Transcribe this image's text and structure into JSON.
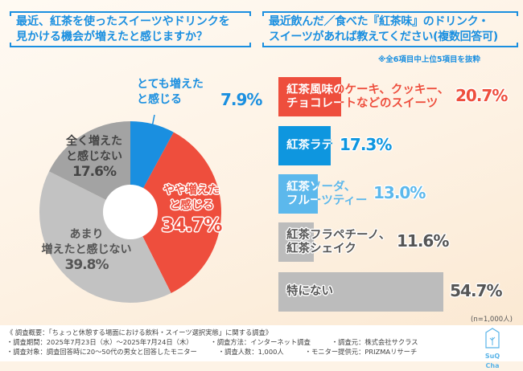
{
  "left": {
    "question": [
      "最近、紅茶を使ったスイーツやドリンクを",
      "見かける機会が増えたと感じますか？"
    ]
  },
  "right": {
    "question": [
      "最近飲んだ／食べた『紅茶味』のドリンク・",
      "スイーツがあれば教えてください(複数回答可)"
    ],
    "note": "※全6項目中上位5項目を抜粋",
    "sample": "(n=1,000人)"
  },
  "chart_data": [
    {
      "type": "pie",
      "style": "donut",
      "slices": [
        {
          "label": [
            "とても増えた",
            "と感じる"
          ],
          "value": 7.9,
          "display": "7.9%",
          "color": "#1a8fe0"
        },
        {
          "label": [
            "やや増えた",
            "と感じる"
          ],
          "value": 34.7,
          "display": "34.7%",
          "color": "#ee4e3d"
        },
        {
          "label": [
            "あまり",
            "増えたと感じない"
          ],
          "value": 39.8,
          "display": "39.8%",
          "color": "#c2c2c2"
        },
        {
          "label": [
            "全く増えた",
            "と感じない"
          ],
          "value": 17.6,
          "display": "17.6%",
          "color": "#a3a3a3"
        }
      ]
    },
    {
      "type": "bar",
      "orientation": "horizontal",
      "unit": "%",
      "bars": [
        {
          "label": [
            "紅茶風味のケーキ、クッキー、",
            "チョコレートなどのスイーツ"
          ],
          "value": 20.7,
          "display": "20.7%",
          "color": "#ee4e3d"
        },
        {
          "label": [
            "紅茶ラテ"
          ],
          "value": 17.3,
          "display": "17.3%",
          "color": "#0e96df"
        },
        {
          "label": [
            "紅茶ソーダ、",
            "フルーツティー"
          ],
          "value": 13.0,
          "display": "13.0%",
          "color": "#5cb8ec"
        },
        {
          "label": [
            "紅茶フラペチーノ、",
            "紅茶シェイク"
          ],
          "value": 11.6,
          "display": "11.6%",
          "color": "#bcbcbc"
        },
        {
          "label": [
            "特にない"
          ],
          "value": 54.7,
          "display": "54.7%",
          "color": "#bcbcbc"
        }
      ]
    }
  ],
  "footer": {
    "title": "《 調査概要：「ちょっと休憩する場面における飲料・スイーツ選択実態」に関する調査》",
    "rows": [
      [
        "・調査期間：2025年7月23日（水）～2025年7月24日（木）",
        "・調査方法：インターネット調査",
        "・調査元：株式会社サクラス"
      ],
      [
        "・調査対象：調査回答時に20～50代の男女と回答したモニター",
        "・調査人数：1,000人",
        "・モニター提供元：PRIZMAリサーチ"
      ]
    ],
    "logo": "SuQ Cha"
  }
}
